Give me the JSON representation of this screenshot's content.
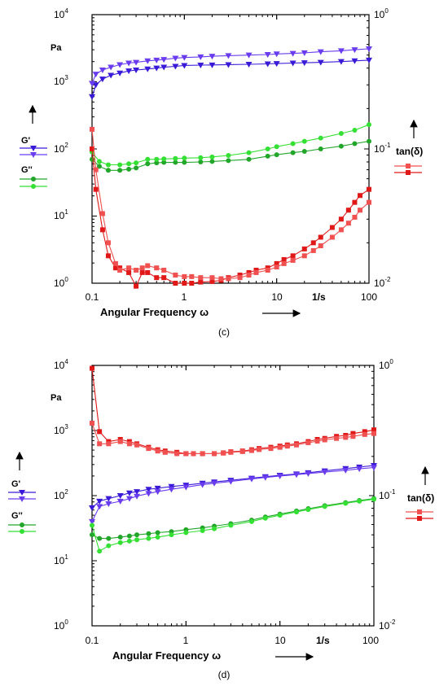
{
  "panels": [
    {
      "caption": "(c)",
      "xlabel": "Angular Frequency ω",
      "xunit": "1/s",
      "yunit": "Pa",
      "left_tick_labels": [
        "10^0",
        "10^1",
        "10^2",
        "10^3",
        "10^4"
      ],
      "right_tick_labels": [
        "10^-2",
        "10^-1",
        "10^0"
      ],
      "x_tick_labels": [
        "0.1",
        "1",
        "10",
        "100"
      ],
      "legend_left": [
        "G'",
        "G''"
      ],
      "legend_right": [
        "tan(δ)"
      ]
    },
    {
      "caption": "(d)",
      "xlabel": "Angular Frequency ω",
      "xunit": "1/s",
      "yunit": "Pa",
      "left_tick_labels": [
        "10^0",
        "10^1",
        "10^2",
        "10^3",
        "10^4"
      ],
      "right_tick_labels": [
        "10^-2",
        "10^-1",
        "10^0"
      ],
      "x_tick_labels": [
        "0.1",
        "1",
        "10",
        "100"
      ],
      "legend_left": [
        "G'",
        "G''"
      ],
      "legend_right": [
        "tan(δ)"
      ]
    }
  ],
  "colors": {
    "g_prime": "#3a1ad8",
    "g_prime_alt": "#6a3cf0",
    "g_double": "#22a62a",
    "g_double_alt": "#33e033",
    "tan": "#e01818",
    "tan_alt": "#f05050"
  },
  "chart_data": [
    {
      "type": "line",
      "panel": "(c)",
      "xscale": "log",
      "yscale": "log",
      "xlim": [
        0.1,
        100
      ],
      "ylim": [
        1,
        10000
      ],
      "y2lim": [
        0.01,
        1
      ],
      "xlabel": "Angular Frequency ω",
      "ylabel": "Pa",
      "series": [
        {
          "name": "G'",
          "axis": "left",
          "marker": "triangle",
          "color": "#3a1ad8",
          "x": [
            0.1,
            0.11,
            0.13,
            0.16,
            0.2,
            0.25,
            0.3,
            0.4,
            0.5,
            0.6,
            0.8,
            1,
            1.5,
            2,
            3,
            5,
            8,
            10,
            15,
            20,
            30,
            50,
            70,
            100
          ],
          "y": [
            600,
            900,
            1100,
            1250,
            1350,
            1450,
            1500,
            1550,
            1600,
            1650,
            1700,
            1750,
            1770,
            1780,
            1800,
            1820,
            1850,
            1870,
            1900,
            1920,
            1950,
            2000,
            2050,
            2100
          ]
        },
        {
          "name": "G'",
          "axis": "left",
          "marker": "triangle",
          "color": "#6a3cf0",
          "x": [
            0.1,
            0.11,
            0.13,
            0.16,
            0.2,
            0.25,
            0.3,
            0.4,
            0.5,
            0.6,
            0.8,
            1,
            1.5,
            2,
            3,
            5,
            8,
            10,
            15,
            20,
            30,
            50,
            70,
            100
          ],
          "y": [
            950,
            1300,
            1500,
            1650,
            1800,
            1900,
            1950,
            2050,
            2100,
            2150,
            2250,
            2300,
            2350,
            2400,
            2450,
            2500,
            2550,
            2600,
            2650,
            2700,
            2800,
            2900,
            3000,
            3100
          ]
        },
        {
          "name": "G''",
          "axis": "left",
          "marker": "circle",
          "color": "#22a62a",
          "x": [
            0.1,
            0.12,
            0.15,
            0.2,
            0.25,
            0.3,
            0.4,
            0.5,
            0.6,
            0.8,
            1,
            1.5,
            2,
            3,
            5,
            8,
            10,
            15,
            20,
            30,
            50,
            70,
            100
          ],
          "y": [
            70,
            55,
            48,
            48,
            50,
            52,
            60,
            62,
            63,
            63,
            63,
            64,
            65,
            67,
            70,
            78,
            82,
            88,
            92,
            100,
            110,
            120,
            130
          ]
        },
        {
          "name": "G''",
          "axis": "left",
          "marker": "circle",
          "color": "#33e033",
          "x": [
            0.1,
            0.12,
            0.15,
            0.2,
            0.25,
            0.3,
            0.4,
            0.5,
            0.6,
            0.8,
            1,
            1.5,
            2,
            3,
            5,
            8,
            10,
            15,
            20,
            30,
            50,
            70,
            100
          ],
          "y": [
            90,
            65,
            58,
            58,
            60,
            62,
            70,
            70,
            71,
            72,
            73,
            74,
            76,
            80,
            88,
            100,
            108,
            120,
            130,
            145,
            170,
            190,
            230
          ]
        },
        {
          "name": "tan(δ)",
          "axis": "right",
          "marker": "square",
          "color": "#e01818",
          "x": [
            0.1,
            0.11,
            0.13,
            0.15,
            0.18,
            0.2,
            0.25,
            0.3,
            0.35,
            0.4,
            0.5,
            0.6,
            0.8,
            1,
            1.2,
            1.5,
            2,
            2.5,
            3,
            4,
            5,
            6,
            8,
            10,
            12,
            15,
            20,
            25,
            30,
            40,
            50,
            60,
            70,
            80,
            100
          ],
          "y": [
            0.1,
            0.05,
            0.025,
            0.016,
            0.013,
            0.013,
            0.012,
            0.0095,
            0.012,
            0.012,
            0.011,
            0.011,
            0.01,
            0.01,
            0.01,
            0.0102,
            0.0103,
            0.0105,
            0.011,
            0.0115,
            0.012,
            0.0125,
            0.013,
            0.014,
            0.015,
            0.016,
            0.018,
            0.02,
            0.022,
            0.026,
            0.03,
            0.035,
            0.04,
            0.045,
            0.05
          ]
        },
        {
          "name": "tan(δ)",
          "axis": "right",
          "marker": "square",
          "color": "#f05050",
          "x": [
            0.1,
            0.11,
            0.13,
            0.15,
            0.18,
            0.2,
            0.25,
            0.3,
            0.35,
            0.4,
            0.5,
            0.6,
            0.8,
            1,
            1.2,
            1.5,
            2,
            2.5,
            3,
            4,
            5,
            6,
            8,
            10,
            12,
            15,
            20,
            25,
            30,
            40,
            50,
            60,
            70,
            80,
            100
          ],
          "y": [
            0.14,
            0.07,
            0.033,
            0.02,
            0.014,
            0.0125,
            0.013,
            0.0125,
            0.013,
            0.0135,
            0.013,
            0.0125,
            0.0115,
            0.0112,
            0.0112,
            0.011,
            0.011,
            0.0108,
            0.0108,
            0.011,
            0.0115,
            0.012,
            0.0125,
            0.0132,
            0.014,
            0.0148,
            0.016,
            0.0175,
            0.019,
            0.022,
            0.025,
            0.028,
            0.031,
            0.035,
            0.04
          ]
        }
      ]
    },
    {
      "type": "line",
      "panel": "(d)",
      "xscale": "log",
      "yscale": "log",
      "xlim": [
        0.1,
        100
      ],
      "ylim": [
        1,
        10000
      ],
      "y2lim": [
        0.01,
        1
      ],
      "xlabel": "Angular Frequency ω",
      "ylabel": "Pa",
      "series": [
        {
          "name": "G'",
          "axis": "left",
          "marker": "triangle",
          "color": "#3a1ad8",
          "x": [
            0.1,
            0.12,
            0.15,
            0.2,
            0.25,
            0.3,
            0.4,
            0.5,
            0.7,
            1,
            1.5,
            2,
            3,
            5,
            7,
            10,
            15,
            20,
            30,
            50,
            70,
            100
          ],
          "y": [
            65,
            82,
            90,
            100,
            110,
            115,
            125,
            130,
            138,
            145,
            155,
            162,
            172,
            185,
            195,
            205,
            215,
            225,
            240,
            260,
            275,
            290
          ]
        },
        {
          "name": "G'",
          "axis": "left",
          "marker": "triangle",
          "color": "#6a3cf0",
          "x": [
            0.1,
            0.12,
            0.15,
            0.2,
            0.25,
            0.3,
            0.4,
            0.5,
            0.7,
            1,
            1.5,
            2,
            3,
            5,
            7,
            10,
            15,
            20,
            30,
            50,
            70,
            100
          ],
          "y": [
            40,
            68,
            75,
            82,
            90,
            98,
            108,
            115,
            125,
            135,
            147,
            155,
            165,
            180,
            190,
            200,
            210,
            218,
            230,
            245,
            258,
            270
          ]
        },
        {
          "name": "G''",
          "axis": "left",
          "marker": "circle",
          "color": "#22a62a",
          "x": [
            0.1,
            0.12,
            0.15,
            0.2,
            0.25,
            0.3,
            0.4,
            0.5,
            0.7,
            1,
            1.5,
            2,
            3,
            5,
            7,
            10,
            15,
            20,
            30,
            50,
            70,
            100
          ],
          "y": [
            25,
            22,
            22,
            23,
            24,
            25,
            26,
            27,
            28,
            30,
            32,
            34,
            37,
            42,
            47,
            52,
            58,
            63,
            70,
            78,
            84,
            90
          ]
        },
        {
          "name": "G''",
          "axis": "left",
          "marker": "circle",
          "color": "#33e033",
          "x": [
            0.1,
            0.12,
            0.15,
            0.2,
            0.25,
            0.3,
            0.4,
            0.5,
            0.7,
            1,
            1.5,
            2,
            3,
            5,
            7,
            10,
            15,
            20,
            30,
            50,
            70,
            100
          ],
          "y": [
            35,
            14,
            17,
            19,
            20,
            21,
            22,
            23,
            25,
            27,
            29,
            31,
            35,
            40,
            45,
            50,
            56,
            61,
            68,
            76,
            82,
            88
          ]
        },
        {
          "name": "tan(δ)",
          "axis": "right",
          "marker": "square",
          "color": "#e01818",
          "x": [
            0.1,
            0.12,
            0.15,
            0.2,
            0.25,
            0.3,
            0.4,
            0.5,
            0.6,
            0.8,
            1,
            1.2,
            1.5,
            2,
            2.5,
            3,
            4,
            5,
            6,
            8,
            10,
            12,
            15,
            20,
            25,
            30,
            40,
            50,
            60,
            80,
            100
          ],
          "y": [
            0.95,
            0.31,
            0.26,
            0.27,
            0.26,
            0.25,
            0.235,
            0.225,
            0.22,
            0.215,
            0.21,
            0.21,
            0.21,
            0.21,
            0.213,
            0.217,
            0.22,
            0.225,
            0.23,
            0.235,
            0.24,
            0.245,
            0.25,
            0.26,
            0.27,
            0.275,
            0.285,
            0.29,
            0.3,
            0.31,
            0.32
          ]
        },
        {
          "name": "tan(δ)",
          "axis": "right",
          "marker": "square",
          "color": "#f05050",
          "x": [
            0.1,
            0.12,
            0.15,
            0.2,
            0.25,
            0.3,
            0.4,
            0.5,
            0.6,
            0.8,
            1,
            1.2,
            1.5,
            2,
            2.5,
            3,
            4,
            5,
            6,
            8,
            10,
            12,
            15,
            20,
            25,
            30,
            40,
            50,
            60,
            80,
            100
          ],
          "y": [
            0.36,
            0.25,
            0.25,
            0.26,
            0.25,
            0.245,
            0.23,
            0.22,
            0.215,
            0.21,
            0.21,
            0.21,
            0.21,
            0.21,
            0.212,
            0.215,
            0.218,
            0.222,
            0.226,
            0.23,
            0.235,
            0.24,
            0.245,
            0.255,
            0.262,
            0.268,
            0.275,
            0.28,
            0.285,
            0.295,
            0.3
          ]
        }
      ]
    }
  ]
}
